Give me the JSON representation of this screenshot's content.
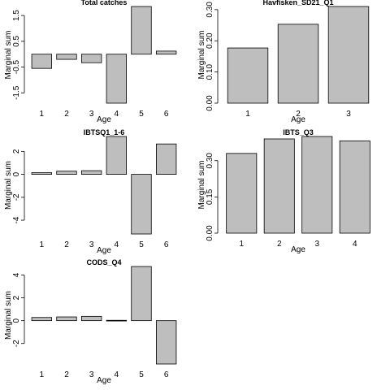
{
  "chart_data": [
    {
      "type": "bar",
      "title": "Total catches",
      "xlabel": "Age",
      "ylabel": "Marginal sum",
      "categories": [
        "1",
        "2",
        "3",
        "4",
        "5",
        "6"
      ],
      "values": [
        -0.55,
        -0.2,
        -0.33,
        -1.9,
        1.85,
        0.12
      ],
      "ylim": [
        -1.9,
        1.85
      ],
      "yticks": [
        -1.5,
        -0.5,
        0.5,
        1.5
      ],
      "ytick_labels": [
        "-1.5",
        "-0.5",
        "0.5",
        "1.5"
      ]
    },
    {
      "type": "bar",
      "title": "Havfisken_SD21_Q1",
      "xlabel": "Age",
      "ylabel": "Marginal sum",
      "categories": [
        "1",
        "2",
        "3"
      ],
      "values": [
        0.177,
        0.253,
        0.31
      ],
      "ylim": [
        0,
        0.31
      ],
      "yticks": [
        0.0,
        0.1,
        0.2,
        0.3
      ],
      "ytick_labels": [
        "0.00",
        "0.10",
        "0.20",
        "0.30"
      ]
    },
    {
      "type": "bar",
      "title": "IBTSQ1_1-6",
      "xlabel": "Age",
      "ylabel": "Marginal sum",
      "categories": [
        "1",
        "2",
        "3",
        "4",
        "5",
        "6"
      ],
      "values": [
        0.15,
        0.28,
        0.32,
        3.3,
        -5.2,
        2.65
      ],
      "ylim": [
        -5.2,
        3.3
      ],
      "yticks": [
        -4,
        -2,
        0,
        2
      ],
      "ytick_labels": [
        "-4",
        "-2",
        "0",
        "2"
      ]
    },
    {
      "type": "bar",
      "title": "IBTS_Q3",
      "xlabel": "Age",
      "ylabel": "Marginal sum",
      "categories": [
        "1",
        "2",
        "3",
        "4"
      ],
      "values": [
        0.33,
        0.39,
        0.4,
        0.382
      ],
      "ylim": [
        0,
        0.4
      ],
      "yticks": [
        0.0,
        0.15,
        0.3
      ],
      "ytick_labels": [
        "0.00",
        "0.15",
        "0.30"
      ]
    },
    {
      "type": "bar",
      "title": "CODS_Q4",
      "xlabel": "Age",
      "ylabel": "Marginal sum",
      "categories": [
        "1",
        "2",
        "3",
        "4",
        "5",
        "6"
      ],
      "values": [
        0.28,
        0.33,
        0.38,
        0.03,
        4.75,
        -3.8
      ],
      "ylim": [
        -3.8,
        4.75
      ],
      "yticks": [
        -2,
        0,
        2,
        4
      ],
      "ytick_labels": [
        "-2",
        "0",
        "2",
        "4"
      ]
    }
  ]
}
